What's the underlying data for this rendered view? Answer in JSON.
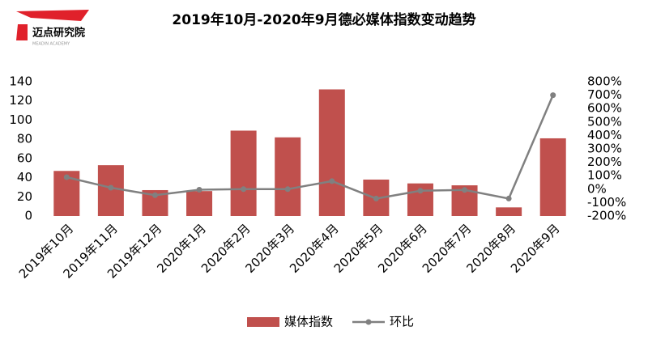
{
  "logo": {
    "name": "迈点研究院",
    "tagline": "MEADIN ACADEMY"
  },
  "chart_data": {
    "type": "bar",
    "title": "2019年10月-2020年9月德必媒体指数变动趋势",
    "categories": [
      "2019年10月",
      "2019年11月",
      "2019年12月",
      "2020年1月",
      "2020年2月",
      "2020年3月",
      "2020年4月",
      "2020年5月",
      "2020年6月",
      "2020年7月",
      "2020年8月",
      "2020年9月"
    ],
    "series": [
      {
        "name": "媒体指数",
        "type": "bar",
        "color": "#c0504d",
        "values": [
          47,
          53,
          27,
          26,
          89,
          82,
          132,
          38,
          34,
          32,
          9,
          81
        ]
      },
      {
        "name": "环比",
        "type": "line",
        "axis": "y2",
        "color": "#808080",
        "values": [
          89,
          11,
          -45,
          -4,
          0,
          0,
          60,
          -70,
          -12,
          -6,
          -70,
          700
        ]
      }
    ],
    "ylim": [
      0,
      140
    ],
    "yticks": [
      0,
      20,
      40,
      60,
      80,
      100,
      120,
      140
    ],
    "y2lim": [
      -200,
      800
    ],
    "y2ticks": [
      {
        "value": -200,
        "label": "-200%"
      },
      {
        "value": -100,
        "label": "-100%"
      },
      {
        "value": 0,
        "label": "0%"
      },
      {
        "value": 100,
        "label": "100%"
      },
      {
        "value": 200,
        "label": "200%"
      },
      {
        "value": 300,
        "label": "300%"
      },
      {
        "value": 400,
        "label": "400%"
      },
      {
        "value": 500,
        "label": "500%"
      },
      {
        "value": 600,
        "label": "600%"
      },
      {
        "value": 700,
        "label": "700%"
      },
      {
        "value": 800,
        "label": "800%"
      }
    ],
    "grid": false,
    "legend": "bottom"
  }
}
